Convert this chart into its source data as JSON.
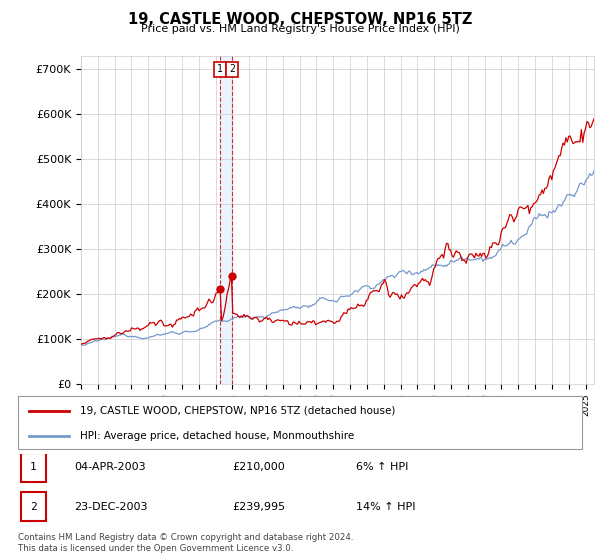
{
  "title": "19, CASTLE WOOD, CHEPSTOW, NP16 5TZ",
  "subtitle": "Price paid vs. HM Land Registry's House Price Index (HPI)",
  "ylabel_ticks": [
    "£0",
    "£100K",
    "£200K",
    "£300K",
    "£400K",
    "£500K",
    "£600K",
    "£700K"
  ],
  "ylim": [
    0,
    730000
  ],
  "xlim_start": 1995.0,
  "xlim_end": 2025.5,
  "transaction1_date": 2003.25,
  "transaction1_price": 210000,
  "transaction1_label": "1",
  "transaction2_date": 2003.97,
  "transaction2_price": 239995,
  "transaction2_label": "2",
  "legend_line1": "19, CASTLE WOOD, CHEPSTOW, NP16 5TZ (detached house)",
  "legend_line2": "HPI: Average price, detached house, Monmouthshire",
  "table_row1": [
    "1",
    "04-APR-2003",
    "£210,000",
    "6% ↑ HPI"
  ],
  "table_row2": [
    "2",
    "23-DEC-2003",
    "£239,995",
    "14% ↑ HPI"
  ],
  "footnote": "Contains HM Land Registry data © Crown copyright and database right 2024.\nThis data is licensed under the Open Government Licence v3.0.",
  "red_color": "#cc0000",
  "blue_color": "#7799cc",
  "shade_color": "#ddeeff",
  "dashed_color": "#cc0000",
  "grid_color": "#cccccc",
  "background_color": "#ffffff"
}
